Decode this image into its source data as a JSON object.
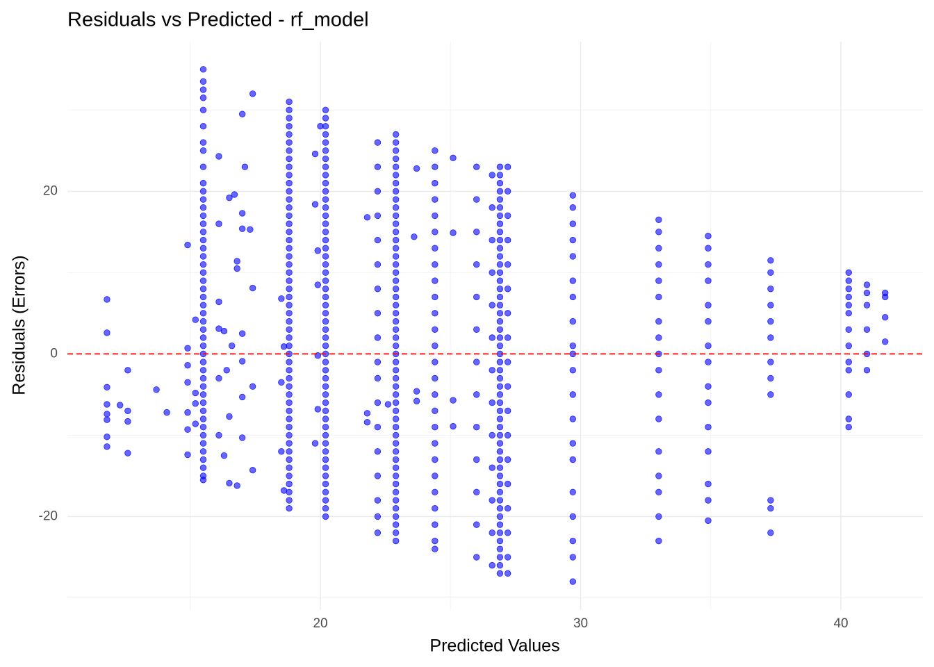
{
  "chart_data": {
    "type": "scatter",
    "title": "Residuals vs Predicted - rf_model",
    "x_label": "Predicted Values",
    "y_label": "Residuals (Errors)",
    "xlim": [
      10.28,
      43.15
    ],
    "ylim": [
      -31.5,
      38.4
    ],
    "xticks": [
      20,
      30,
      40
    ],
    "yticks": [
      -20,
      0,
      20
    ],
    "xminor": [
      15,
      25,
      35
    ],
    "yminor": [
      -30,
      -10,
      10,
      30
    ],
    "grid": true,
    "color": "#0000ff",
    "hline": {
      "value": 0,
      "color": "#ff0000"
    },
    "series": [
      {
        "x": [
          15.5,
          15.5,
          15.5,
          15.5,
          15.5,
          15.5,
          15.5,
          15.5,
          15.5,
          15.5,
          15.5,
          15.5,
          15.5,
          15.5,
          15.5,
          15.5,
          15.5,
          15.5,
          15.5,
          15.5,
          15.5,
          15.5,
          15.5,
          15.5,
          15.5,
          15.5,
          15.5,
          15.5,
          15.5,
          15.5,
          15.5,
          15.5,
          15.5,
          15.5,
          15.5,
          15.5,
          15.5,
          15.5,
          15.5,
          15.5,
          15.5,
          15.5,
          15.5,
          15.5,
          15.5,
          15.5,
          15.5
        ],
        "values": [
          35,
          33.5,
          32.5,
          31.5,
          30,
          28,
          26,
          25,
          23,
          21,
          20,
          19,
          18,
          17,
          16,
          15,
          14,
          13,
          12,
          11,
          10,
          9,
          8,
          7,
          6,
          5,
          4,
          3,
          2,
          1,
          0,
          -1,
          -2,
          -3,
          -4,
          -5,
          -6,
          -7,
          -8,
          -9,
          -10,
          -11,
          -12,
          -13,
          -14,
          -15,
          -15.5
        ]
      },
      {
        "x": [
          18.8,
          18.8,
          18.8,
          18.8,
          18.8,
          18.8,
          18.8,
          18.8,
          18.8,
          18.8,
          18.8,
          18.8,
          18.8,
          18.8,
          18.8,
          18.8,
          18.8,
          18.8,
          18.8,
          18.8,
          18.8,
          18.8,
          18.8,
          18.8,
          18.8,
          18.8,
          18.8,
          18.8,
          18.8,
          18.8,
          18.8,
          18.8,
          18.8,
          18.8,
          18.8,
          18.8,
          18.8,
          18.8,
          18.8,
          18.8,
          18.8,
          18.8,
          18.8,
          18.8,
          18.8,
          18.8,
          18.8,
          18.8,
          18.8,
          18.8,
          18.8
        ],
        "values": [
          31,
          30,
          29,
          28,
          27,
          26,
          25,
          24,
          23,
          22,
          21,
          20,
          19,
          18,
          17,
          16,
          15,
          14,
          13,
          12,
          11,
          10,
          9,
          8,
          7,
          6,
          5,
          4,
          3,
          2,
          1,
          0,
          -1,
          -2,
          -3,
          -4,
          -5,
          -6,
          -7,
          -8,
          -9,
          -10,
          -11,
          -12,
          -13,
          -14,
          -15,
          -16,
          -17,
          -18,
          -19
        ]
      },
      {
        "x": [
          20.2,
          20.2,
          20.2,
          20.2,
          20.2,
          20.2,
          20.2,
          20.2,
          20.2,
          20.2,
          20.2,
          20.2,
          20.2,
          20.2,
          20.2,
          20.2,
          20.2,
          20.2,
          20.2,
          20.2,
          20.2,
          20.2,
          20.2,
          20.2,
          20.2,
          20.2,
          20.2,
          20.2,
          20.2,
          20.2,
          20.2,
          20.2,
          20.2,
          20.2,
          20.2,
          20.2,
          20.2,
          20.2,
          20.2,
          20.2,
          20.2,
          20.2,
          20.2,
          20.2,
          20.2,
          20.2,
          20.2,
          20.2,
          20.2,
          20.2,
          20.2
        ],
        "values": [
          30,
          29,
          28,
          27,
          26,
          25,
          24,
          23,
          22,
          21,
          20,
          19,
          18,
          17,
          16,
          15,
          14,
          13,
          12,
          11,
          10,
          9,
          8,
          7,
          6,
          5,
          4,
          3,
          2,
          1,
          0,
          -1,
          -2,
          -3,
          -4,
          -5,
          -6,
          -7,
          -8,
          -9,
          -10,
          -11,
          -12,
          -13,
          -14,
          -15,
          -16,
          -17,
          -18,
          -19,
          -20
        ]
      },
      {
        "x": [
          22.9,
          22.9,
          22.9,
          22.9,
          22.9,
          22.9,
          22.9,
          22.9,
          22.9,
          22.9,
          22.9,
          22.9,
          22.9,
          22.9,
          22.9,
          22.9,
          22.9,
          22.9,
          22.9,
          22.9,
          22.9,
          22.9,
          22.9,
          22.9,
          22.9,
          22.9,
          22.9,
          22.9,
          22.9,
          22.9,
          22.9,
          22.9,
          22.9,
          22.9,
          22.9,
          22.9,
          22.9,
          22.9,
          22.9,
          22.9,
          22.9,
          22.9,
          22.9,
          22.9,
          22.9,
          22.9,
          22.9,
          22.9,
          22.9,
          22.9,
          22.9
        ],
        "values": [
          27,
          26,
          25,
          24,
          23,
          22,
          21,
          20,
          19,
          18,
          17,
          16,
          15,
          14,
          13,
          12,
          11,
          10,
          9,
          8,
          7,
          6,
          5,
          4,
          3,
          2,
          1,
          0,
          -1,
          -2,
          -3,
          -4,
          -5,
          -6,
          -7,
          -8,
          -9,
          -10,
          -11,
          -12,
          -13,
          -14,
          -15,
          -16,
          -17,
          -18,
          -19,
          -20,
          -21,
          -22,
          -23
        ]
      },
      {
        "x": [
          24.4,
          24.4,
          24.4,
          24.4,
          24.4,
          24.4,
          24.4,
          24.4,
          24.4,
          24.4,
          24.4,
          24.4,
          24.4,
          24.4,
          24.4,
          24.4,
          24.4,
          24.4,
          24.4,
          24.4,
          24.4,
          24.4,
          24.4,
          24.4,
          24.4,
          24.4
        ],
        "values": [
          25,
          23,
          21,
          19,
          17,
          15,
          13,
          11,
          9,
          7,
          5,
          3,
          1,
          -1,
          -3,
          -5,
          -7,
          -9,
          -11,
          -13,
          -15,
          -17,
          -19,
          -21,
          -23,
          -24
        ]
      },
      {
        "x": [
          22.2,
          22.2,
          22.2,
          22.2,
          22.2,
          22.2,
          22.2,
          22.2,
          22.2,
          22.2,
          22.2,
          22.2,
          22.2,
          22.2,
          22.2,
          22.2,
          22.2,
          22.2
        ],
        "values": [
          26,
          23,
          20,
          17,
          14,
          11,
          8,
          5,
          2,
          -1,
          -3,
          -6,
          -9,
          -12,
          -15,
          -18,
          -20,
          -22
        ]
      },
      {
        "x": [
          26.9,
          26.9,
          26.9,
          26.9,
          26.9,
          26.9,
          26.9,
          26.9,
          26.9,
          26.9,
          26.9,
          26.9,
          26.9,
          26.9,
          26.9,
          26.9,
          26.9,
          26.9,
          26.9,
          26.9,
          26.9,
          26.9,
          26.9,
          26.9,
          26.9,
          26.9,
          26.9,
          26.9,
          26.9,
          26.9,
          26.9,
          26.9,
          26.9,
          26.9,
          26.9,
          26.9,
          26.9,
          26.9,
          26.9,
          26.9,
          26.9,
          26.9,
          26.9,
          26.9,
          26.9,
          26.9,
          26.9,
          26.9,
          26.9,
          26.9,
          26.9
        ],
        "values": [
          23,
          22,
          21,
          20,
          19,
          18,
          17,
          16,
          15,
          14,
          13,
          12,
          11,
          10,
          9,
          8,
          7,
          6,
          5,
          4,
          3,
          2,
          1,
          0,
          -1,
          -2,
          -3,
          -4,
          -5,
          -6,
          -7,
          -8,
          -9,
          -10,
          -11,
          -12,
          -13,
          -14,
          -15,
          -16,
          -17,
          -18,
          -19,
          -20,
          -21,
          -22,
          -23,
          -24,
          -25,
          -26,
          -27
        ]
      },
      {
        "x": [
          26.6,
          26.6,
          26.6,
          26.6,
          26.6,
          26.6,
          26.6,
          26.6,
          26.6,
          26.6,
          26.6,
          26.6,
          26.6
        ],
        "values": [
          22,
          18,
          14,
          10,
          6,
          2,
          -2,
          -6,
          -10,
          -14,
          -18,
          -22,
          -26
        ]
      },
      {
        "x": [
          26.0,
          26.0,
          26.0,
          26.0,
          26.0,
          26.0,
          26.0,
          26.0,
          26.0,
          26.0,
          26.0,
          26.0,
          26.0
        ],
        "values": [
          23,
          19,
          15,
          11,
          7,
          3,
          -1,
          -5,
          -9,
          -13,
          -17,
          -21,
          -25
        ]
      },
      {
        "x": [
          27.2,
          27.2,
          27.2,
          27.2,
          27.2,
          27.2,
          27.2,
          27.2,
          27.2,
          27.2,
          27.2,
          27.2,
          27.2,
          27.2,
          27.2,
          27.2,
          27.2,
          27.2
        ],
        "values": [
          23,
          20,
          17,
          14,
          11,
          8,
          5,
          2,
          -1,
          -4,
          -7,
          -10,
          -13,
          -16,
          -19,
          -22,
          -25,
          -27
        ]
      },
      {
        "x": [
          29.7,
          29.7,
          29.7,
          29.7,
          29.7,
          29.7,
          29.7,
          29.7,
          29.7,
          29.7,
          29.7,
          29.7,
          29.7,
          29.7,
          29.7,
          29.7,
          29.7,
          29.7,
          29.7,
          29.7
        ],
        "values": [
          19.5,
          18,
          16,
          14,
          12,
          9,
          7,
          4,
          1,
          0,
          -2,
          -5,
          -8,
          -11,
          -13,
          -17,
          -20,
          -23,
          -25,
          -28
        ]
      },
      {
        "x": [
          33.0,
          33.0,
          33.0,
          33.0,
          33.0,
          33.0,
          33.0,
          33.0,
          33.0,
          33.0,
          33.0,
          33.0,
          33.0,
          33.0,
          33.0,
          33.0,
          33.0
        ],
        "values": [
          16.5,
          15,
          13,
          11,
          9,
          7,
          4,
          2,
          0,
          -2,
          -5,
          -8,
          -12,
          -15,
          -17,
          -20,
          -23
        ]
      },
      {
        "x": [
          34.9,
          34.9,
          34.9,
          34.9,
          34.9,
          34.9,
          34.9,
          34.9,
          34.9,
          34.9,
          34.9,
          34.9,
          34.9,
          34.9,
          34.9
        ],
        "values": [
          14.5,
          13,
          11,
          9,
          6,
          4,
          1,
          -1,
          -4,
          -6,
          -9,
          -12,
          -16,
          -18,
          -20.5
        ]
      },
      {
        "x": [
          37.3,
          37.3,
          37.3,
          37.3,
          37.3,
          37.3,
          37.3,
          37.3,
          37.3,
          37.3,
          37.3,
          37.3
        ],
        "values": [
          11.5,
          10,
          8,
          6,
          4,
          2,
          -1,
          -3,
          -5,
          -18,
          -19,
          -22
        ]
      },
      {
        "x": [
          40.3,
          40.3,
          40.3,
          40.3,
          40.3,
          40.3,
          40.3,
          40.3,
          40.3,
          40.3,
          40.3,
          40.3,
          40.3
        ],
        "values": [
          10,
          9,
          8,
          7,
          6,
          5,
          3,
          1,
          -1,
          -2,
          -5,
          -8,
          -9
        ]
      },
      {
        "x": [
          41.0,
          41.0,
          41.0,
          41.0,
          41.0,
          41.0
        ],
        "values": [
          8.5,
          7.5,
          6,
          3,
          0,
          -2
        ]
      },
      {
        "x": [
          41.7,
          41.7,
          41.7,
          41.7
        ],
        "values": [
          7.5,
          7,
          4.5,
          1.5
        ]
      },
      {
        "x": [
          11.8,
          11.8,
          11.8,
          11.8,
          11.8,
          11.8,
          11.8,
          11.8,
          12.3,
          12.6,
          12.6,
          12.6,
          12.6,
          13.7,
          14.1,
          14.9,
          14.9,
          14.9,
          14.9,
          14.9,
          14.9,
          14.9,
          15.2,
          15.2,
          15.2,
          15.2,
          16.1,
          16.1,
          16.1,
          16.1,
          16.1,
          16.1,
          16.3,
          16.4,
          16.5,
          16.5,
          16.5,
          16.7,
          16.8,
          16.8,
          16.8,
          17.0,
          17.0,
          17.0,
          17.0,
          17.0,
          17.0,
          17.1,
          17.3,
          17.4,
          17.4,
          17.4,
          17.4,
          16.3,
          16.6,
          17.0,
          18.5,
          18.5,
          18.5,
          18.6,
          18.6,
          19.8,
          19.8,
          19.9,
          19.9,
          19.9,
          19.9,
          19.8,
          20.0,
          21.8,
          21.8,
          21.8,
          23.7,
          23.6,
          23.7,
          23.7,
          25.1,
          25.1,
          25.1,
          25.1,
          22.6
        ],
        "values": [
          6.7,
          2.6,
          -4.1,
          -6.2,
          -7.4,
          -8.1,
          -10.2,
          -11.4,
          -6.3,
          -2,
          -7,
          -8.3,
          -12.2,
          -4.4,
          -7.2,
          13.4,
          0.7,
          -1.4,
          -3.5,
          -7.2,
          -9.3,
          -12.4,
          4.2,
          -4.8,
          -6.1,
          -8.6,
          24.3,
          16,
          6.4,
          3.1,
          -3,
          -10,
          -12.5,
          -2,
          19.2,
          -7.7,
          -15.9,
          19.6,
          11.4,
          10.5,
          -16.2,
          29.5,
          17.3,
          15.4,
          -0.9,
          -5.3,
          -10.3,
          23,
          15.3,
          32,
          8.1,
          -4,
          -14.3,
          2.8,
          1,
          2.5,
          6.8,
          -3.5,
          -12,
          0.9,
          -16.8,
          24.6,
          18.4,
          12.7,
          8.5,
          -0.2,
          -6.8,
          -11,
          28,
          16.8,
          -7.3,
          -8.4,
          22.8,
          14.4,
          -4.6,
          -5.8,
          24.1,
          14.9,
          -5.7,
          -8.9,
          -6.2
        ]
      }
    ]
  }
}
